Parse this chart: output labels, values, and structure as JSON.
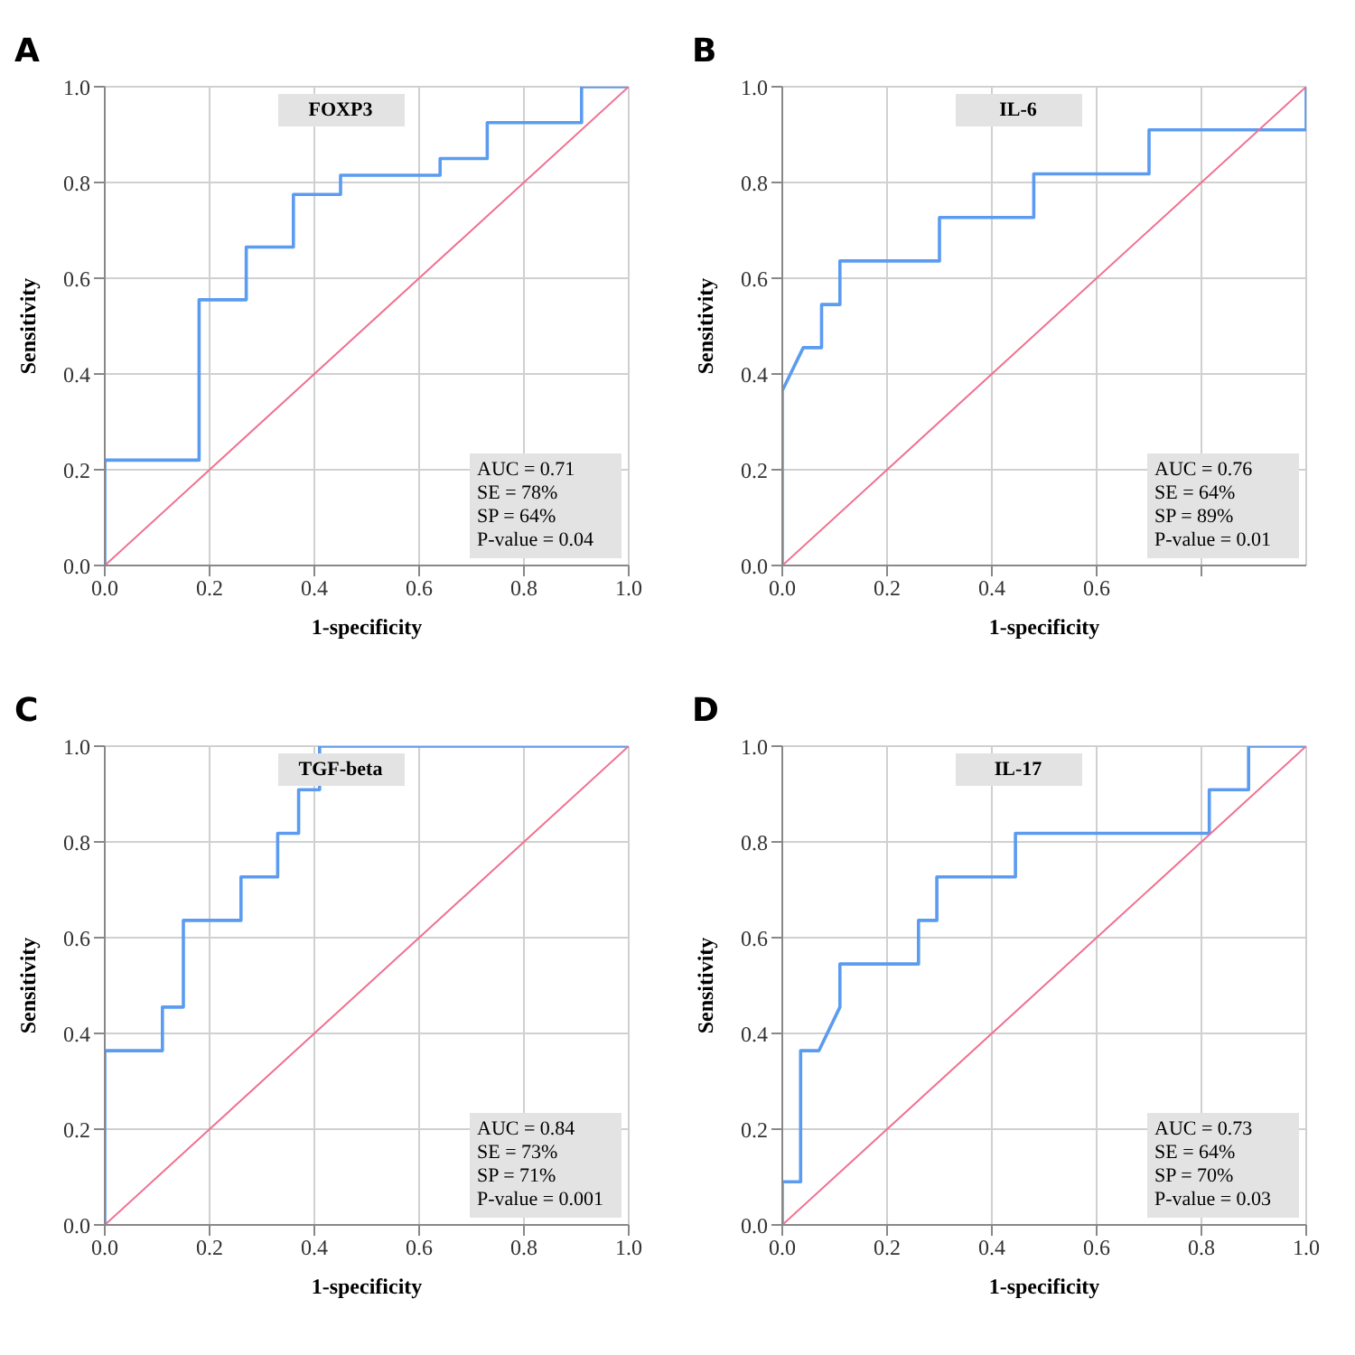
{
  "chart_data": [
    {
      "type": "line",
      "title": "FOXP3",
      "xlabel": "1-specificity",
      "ylabel": "Sensitivity",
      "annotations": [
        "A",
        "AUC = 0.71",
        "SE = 78%",
        "SP = 64%",
        "P-value = 0.04"
      ],
      "xlim": [
        0,
        1
      ],
      "ylim": [
        0,
        1
      ],
      "xticks": [
        {
          "value": 0,
          "label": "0.0"
        },
        {
          "value": 0.2,
          "label": "0.2"
        },
        {
          "value": 0.4,
          "label": "0.4"
        },
        {
          "value": 0.6,
          "label": "0.6"
        },
        {
          "value": 0.8,
          "label": "0.8"
        },
        {
          "value": 1,
          "label": "1.0"
        }
      ],
      "yticks": [
        {
          "value": 0,
          "label": "0.0"
        },
        {
          "value": 0.2,
          "label": "0.2"
        },
        {
          "value": 0.4,
          "label": "0.4"
        },
        {
          "value": 0.6,
          "label": "0.6"
        },
        {
          "value": 0.8,
          "label": "0.8"
        },
        {
          "value": 1,
          "label": "1.0"
        }
      ],
      "grid": true,
      "marker": "none",
      "line_style": "solid",
      "series": [
        {
          "color": "#5b9bf0",
          "x": [
            0,
            0,
            0.18,
            0.18,
            0.27,
            0.27,
            0.36,
            0.36,
            0.45,
            0.45,
            0.64,
            0.64,
            0.73,
            0.73,
            0.91,
            0.91,
            1
          ],
          "values": [
            0,
            0.22,
            0.22,
            0.555,
            0.555,
            0.665,
            0.665,
            0.775,
            0.775,
            0.815,
            0.815,
            0.85,
            0.85,
            0.925,
            0.925,
            1,
            1
          ]
        },
        {
          "color": "#f07090",
          "x": [
            0,
            1
          ],
          "values": [
            0,
            1
          ]
        }
      ]
    },
    {
      "type": "line",
      "title": "IL-6",
      "xlabel": "1-specificity",
      "ylabel": "Sensitivity",
      "annotations": [
        "B",
        "AUC = 0.76",
        "SE = 64%",
        "SP = 89%",
        "P-value = 0.01"
      ],
      "xlim": [
        0,
        1
      ],
      "ylim": [
        0,
        1
      ],
      "xticks": [
        {
          "value": 0,
          "label": "0.0"
        },
        {
          "value": 0.2,
          "label": "0.2"
        },
        {
          "value": 0.4,
          "label": "0.4"
        },
        {
          "value": 0.6,
          "label": "0.6"
        },
        {
          "value": 0.8,
          "label": null
        }
      ],
      "yticks": [
        {
          "value": 0,
          "label": "0.0"
        },
        {
          "value": 0.2,
          "label": "0.2"
        },
        {
          "value": 0.4,
          "label": "0.4"
        },
        {
          "value": 0.6,
          "label": "0.6"
        },
        {
          "value": 0.8,
          "label": "0.8"
        },
        {
          "value": 1,
          "label": "1.0"
        }
      ],
      "grid": true,
      "marker": "none",
      "line_style": "solid",
      "series": [
        {
          "color": "#5b9bf0",
          "x": [
            0,
            0,
            0.04,
            0.075,
            0.075,
            0.11,
            0.11,
            0.3,
            0.3,
            0.48,
            0.48,
            0.7,
            0.7,
            1,
            1
          ],
          "values": [
            0,
            0.365,
            0.455,
            0.455,
            0.545,
            0.545,
            0.636,
            0.636,
            0.727,
            0.727,
            0.818,
            0.818,
            0.91,
            0.91,
            1
          ]
        },
        {
          "color": "#f07090",
          "x": [
            0,
            1
          ],
          "values": [
            0,
            1
          ]
        }
      ]
    },
    {
      "type": "line",
      "title": "TGF-beta",
      "xlabel": "1-specificity",
      "ylabel": "Sensitivity",
      "annotations": [
        "C",
        "AUC = 0.84",
        "SE = 73%",
        "SP = 71%",
        "P-value = 0.001"
      ],
      "xlim": [
        0,
        1
      ],
      "ylim": [
        0,
        1
      ],
      "xticks": [
        {
          "value": 0,
          "label": "0.0"
        },
        {
          "value": 0.2,
          "label": "0.2"
        },
        {
          "value": 0.4,
          "label": "0.4"
        },
        {
          "value": 0.6,
          "label": "0.6"
        },
        {
          "value": 0.8,
          "label": "0.8"
        },
        {
          "value": 1,
          "label": "1.0"
        }
      ],
      "yticks": [
        {
          "value": 0,
          "label": "0.0"
        },
        {
          "value": 0.2,
          "label": "0.2"
        },
        {
          "value": 0.4,
          "label": "0.4"
        },
        {
          "value": 0.6,
          "label": "0.6"
        },
        {
          "value": 0.8,
          "label": "0.8"
        },
        {
          "value": 1,
          "label": "1.0"
        }
      ],
      "grid": true,
      "marker": "none",
      "line_style": "solid",
      "series": [
        {
          "color": "#5b9bf0",
          "x": [
            0,
            0,
            0.11,
            0.11,
            0.15,
            0.15,
            0.26,
            0.26,
            0.33,
            0.33,
            0.37,
            0.37,
            0.41,
            0.41,
            1
          ],
          "values": [
            0,
            0.364,
            0.364,
            0.455,
            0.455,
            0.636,
            0.636,
            0.727,
            0.727,
            0.818,
            0.818,
            0.909,
            0.909,
            1,
            1
          ]
        },
        {
          "color": "#f07090",
          "x": [
            0,
            1
          ],
          "values": [
            0,
            1
          ]
        }
      ]
    },
    {
      "type": "line",
      "title": "IL-17",
      "xlabel": "1-specificity",
      "ylabel": "Sensitivity",
      "annotations": [
        "D",
        "AUC = 0.73",
        "SE = 64%",
        "SP = 70%",
        "P-value = 0.03"
      ],
      "xlim": [
        0,
        1
      ],
      "ylim": [
        0,
        1
      ],
      "xticks": [
        {
          "value": 0,
          "label": "0.0"
        },
        {
          "value": 0.2,
          "label": "0.2"
        },
        {
          "value": 0.4,
          "label": "0.4"
        },
        {
          "value": 0.6,
          "label": "0.6"
        },
        {
          "value": 0.8,
          "label": "0.8"
        },
        {
          "value": 1,
          "label": "1.0"
        }
      ],
      "yticks": [
        {
          "value": 0,
          "label": "0.0"
        },
        {
          "value": 0.2,
          "label": "0.2"
        },
        {
          "value": 0.4,
          "label": "0.4"
        },
        {
          "value": 0.6,
          "label": "0.6"
        },
        {
          "value": 0.8,
          "label": "0.8"
        },
        {
          "value": 1,
          "label": "1.0"
        }
      ],
      "grid": true,
      "marker": "none",
      "line_style": "solid",
      "series": [
        {
          "color": "#5b9bf0",
          "x": [
            0,
            0,
            0.035,
            0.035,
            0.07,
            0.11,
            0.11,
            0.26,
            0.26,
            0.295,
            0.295,
            0.445,
            0.445,
            0.815,
            0.815,
            0.89,
            0.89,
            1
          ],
          "values": [
            0,
            0.09,
            0.09,
            0.364,
            0.364,
            0.455,
            0.545,
            0.545,
            0.636,
            0.636,
            0.727,
            0.727,
            0.818,
            0.818,
            0.909,
            0.909,
            1,
            1
          ]
        },
        {
          "color": "#f07090",
          "x": [
            0,
            1
          ],
          "values": [
            0,
            1
          ]
        }
      ]
    }
  ]
}
